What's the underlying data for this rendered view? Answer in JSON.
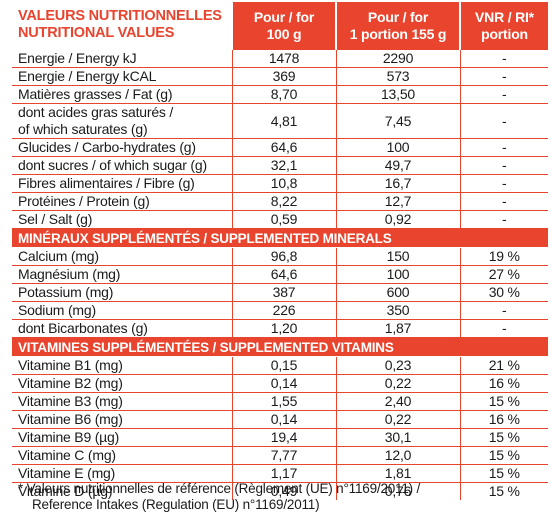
{
  "header": {
    "title_fr": "VALEURS NUTRITIONNELLES",
    "title_en": "NUTRITIONAL VALUES",
    "col_100g": [
      "Pour / for",
      "100 g"
    ],
    "col_portion": [
      "Pour / for",
      "1 portion 155 g"
    ],
    "col_vnr": [
      "VNR / RI*",
      "portion"
    ]
  },
  "nutrition_rows": [
    {
      "label": [
        "Energie / Energy kJ"
      ],
      "per100g": "1478",
      "portion": "2290",
      "vnr": "-"
    },
    {
      "label": [
        "Energie / Energy kCAL"
      ],
      "per100g": "369",
      "portion": "573",
      "vnr": "-"
    },
    {
      "label": [
        "Matières grasses / Fat (g)"
      ],
      "per100g": "8,70",
      "portion": "13,50",
      "vnr": "-"
    },
    {
      "label": [
        "dont acides gras saturés /",
        "of which saturates (g)"
      ],
      "per100g": "4,81",
      "portion": "7,45",
      "vnr": "-"
    },
    {
      "label": [
        "Glucides / Carbo-hydrates (g)"
      ],
      "per100g": "64,6",
      "portion": "100",
      "vnr": "-"
    },
    {
      "label": [
        "dont sucres / of which sugar (g)"
      ],
      "per100g": "32,1",
      "portion": "49,7",
      "vnr": "-"
    },
    {
      "label": [
        "Fibres alimentaires / Fibre (g)"
      ],
      "per100g": "10,8",
      "portion": "16,7",
      "vnr": "-"
    },
    {
      "label": [
        "Protéines / Protein (g)"
      ],
      "per100g": "8,22",
      "portion": "12,7",
      "vnr": "-"
    },
    {
      "label": [
        "Sel / Salt (g)"
      ],
      "per100g": "0,59",
      "portion": "0,92",
      "vnr": "-"
    }
  ],
  "minerals": {
    "title": "MINÉRAUX SUPPLÉMENTÉS / SUPPLEMENTED MINERALS",
    "rows": [
      {
        "label": [
          "Calcium (mg)"
        ],
        "per100g": "96,8",
        "portion": "150",
        "vnr": "19 %"
      },
      {
        "label": [
          "Magnésium (mg)"
        ],
        "per100g": "64,6",
        "portion": "100",
        "vnr": "27 %"
      },
      {
        "label": [
          "Potassium (mg)"
        ],
        "per100g": "387",
        "portion": "600",
        "vnr": "30 %"
      },
      {
        "label": [
          "Sodium (mg)"
        ],
        "per100g": "226",
        "portion": "350",
        "vnr": "-"
      },
      {
        "label": [
          "dont Bicarbonates (g)"
        ],
        "per100g": "1,20",
        "portion": "1,87",
        "vnr": "-"
      }
    ]
  },
  "vitamins": {
    "title": "VITAMINES SUPPLÉMENTÉES / SUPPLEMENTED VITAMINS",
    "rows": [
      {
        "label": [
          "Vitamine B1 (mg)"
        ],
        "per100g": "0,15",
        "portion": "0,23",
        "vnr": "21 %"
      },
      {
        "label": [
          "Vitamine B2 (mg)"
        ],
        "per100g": "0,14",
        "portion": "0,22",
        "vnr": "16 %"
      },
      {
        "label": [
          "Vitamine B3 (mg)"
        ],
        "per100g": "1,55",
        "portion": "2,40",
        "vnr": "15 %"
      },
      {
        "label": [
          "Vitamine B6 (mg)"
        ],
        "per100g": "0,14",
        "portion": "0,22",
        "vnr": "16 %"
      },
      {
        "label": [
          "Vitamine B9 (µg)"
        ],
        "per100g": "19,4",
        "portion": "30,1",
        "vnr": "15 %"
      },
      {
        "label": [
          "Vitamine C (mg)"
        ],
        "per100g": "7,77",
        "portion": "12,0",
        "vnr": "15 %"
      },
      {
        "label": [
          "Vitamine E (mg)"
        ],
        "per100g": "1,17",
        "portion": "1,81",
        "vnr": "15 %"
      },
      {
        "label": [
          "Vitamine D (µg)"
        ],
        "per100g": "0,49",
        "portion": "0,76",
        "vnr": "15 %"
      }
    ]
  },
  "footnote": [
    "* Valeurs nutritionnelles de référence (Règlement (UE) n°1169/2011) /",
    "Reference Intakes (Regulation (EU) n°1169/2011)"
  ],
  "colors": {
    "accent": "#e8442e",
    "text": "#1a1a1a",
    "background": "#ffffff"
  }
}
